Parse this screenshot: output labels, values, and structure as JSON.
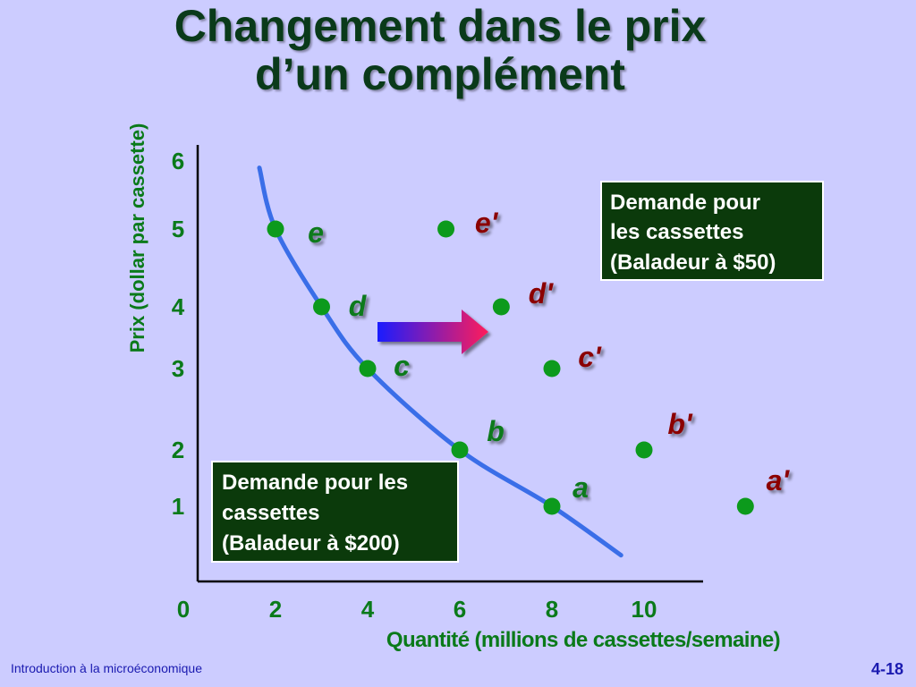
{
  "slide": {
    "title_line1": "Changement dans le prix",
    "title_line2": "d’un complément",
    "footer_left": "Introduction à la microéconomique",
    "footer_right": "4-18"
  },
  "colors": {
    "background": "#ccccff",
    "title": "#0a3a1a",
    "axis_text": "#0a7a1a",
    "curve": "#3a6ee8",
    "point": "#0c9a1c",
    "label_original": "#0a7a1a",
    "label_shifted": "#8b0000",
    "box_fill": "#0b3a0b",
    "arrow_start": "#1a1aff",
    "arrow_end": "#ff1a5a"
  },
  "chart_data": {
    "type": "line",
    "xlabel": "Quantité (millions de cassettes/semaine)",
    "ylabel": "Prix (dollar par cassette)",
    "xlim": [
      0,
      11
    ],
    "ylim": [
      0,
      6
    ],
    "x_ticks": [
      "0",
      "2",
      "4",
      "6",
      "8",
      "10"
    ],
    "y_ticks": [
      "1",
      "2",
      "3",
      "4",
      "5",
      "6"
    ],
    "grid": false,
    "series": [
      {
        "name": "Demande pour les cassettes (Baladeur à $200)",
        "points": [
          {
            "label": "e",
            "x": 2,
            "y": 5
          },
          {
            "label": "d",
            "x": 3,
            "y": 4
          },
          {
            "label": "c",
            "x": 4,
            "y": 3
          },
          {
            "label": "b",
            "x": 6,
            "y": 2
          },
          {
            "label": "a",
            "x": 8,
            "y": 1
          }
        ]
      },
      {
        "name": "Demande pour les cassettes (Baladeur à $50)",
        "points": [
          {
            "label": "e'",
            "x": 5.7,
            "y": 5
          },
          {
            "label": "d'",
            "x": 6.9,
            "y": 4
          },
          {
            "label": "c'",
            "x": 8,
            "y": 3
          },
          {
            "label": "b'",
            "x": 10,
            "y": 2
          },
          {
            "label": "a'",
            "x": 12.2,
            "y": 1
          }
        ]
      }
    ],
    "annotations": [
      {
        "text": "Demande pour les cassettes (Baladeur à $200)",
        "lines": [
          "Demande pour les",
          "cassettes",
          "(Baladeur à $200)"
        ]
      },
      {
        "text": "Demande pour les cassettes (Baladeur à $50)",
        "lines": [
          "Demande pour",
          "les cassettes",
          "(Baladeur à $50)"
        ]
      }
    ]
  }
}
